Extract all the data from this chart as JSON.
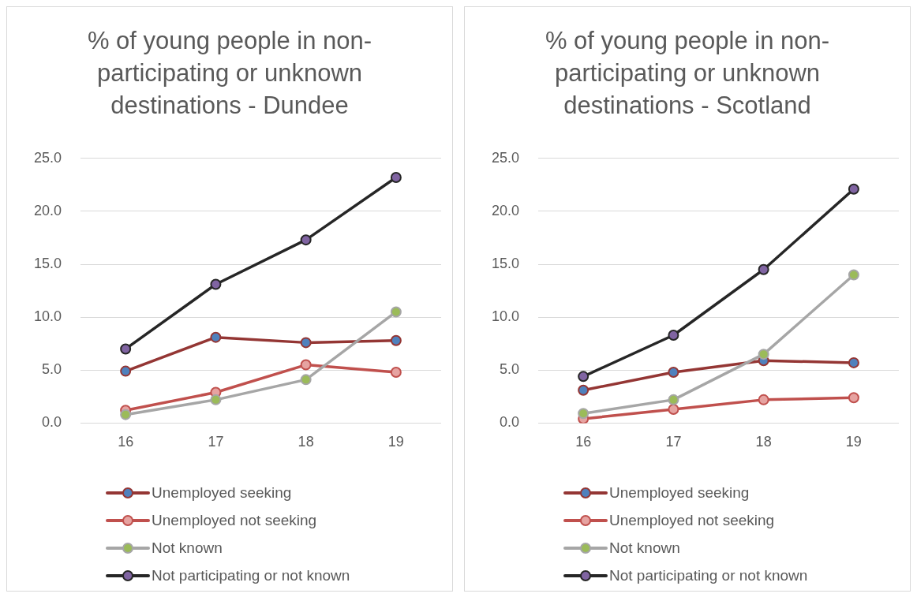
{
  "chart_data": [
    {
      "type": "line",
      "title": "% of young people in non-participating or unknown destinations - Dundee",
      "categories": [
        "16",
        "17",
        "18",
        "19"
      ],
      "ylim": [
        0,
        25
      ],
      "yticks": [
        {
          "value": 0,
          "label": "0.0"
        },
        {
          "value": 5,
          "label": "5.0"
        },
        {
          "value": 10,
          "label": "10.0"
        },
        {
          "value": 15,
          "label": "15.0"
        },
        {
          "value": 20,
          "label": "20.0"
        },
        {
          "value": 25,
          "label": "25.0"
        }
      ],
      "grid": "y",
      "legend": "bottom",
      "marker": "circle",
      "line_style": "solid",
      "series": [
        {
          "name": "Unemployed seeking",
          "color": "#943634",
          "colors": [
            "#4f81bd",
            "#4f81bd",
            "#4f81bd",
            "#4f81bd"
          ],
          "values": [
            4.9,
            8.1,
            7.6,
            7.8
          ]
        },
        {
          "name": "Unemployed not seeking",
          "color": "#c0504d",
          "colors": [
            "#e6a3a1",
            "#e6a3a1",
            "#e6a3a1",
            "#e6a3a1"
          ],
          "values": [
            1.2,
            2.9,
            5.5,
            4.8
          ]
        },
        {
          "name": "Not known",
          "color": "#a6a6a6",
          "colors": [
            "#9bbb59",
            "#9bbb59",
            "#9bbb59",
            "#9bbb59"
          ],
          "values": [
            0.8,
            2.2,
            4.1,
            10.5
          ]
        },
        {
          "name": "Not participating or not known",
          "color": "#262626",
          "colors": [
            "#8064a2",
            "#8064a2",
            "#8064a2",
            "#8064a2"
          ],
          "values": [
            7.0,
            13.1,
            17.3,
            23.2
          ]
        }
      ]
    },
    {
      "type": "line",
      "title": "% of young people in non-participating or unknown destinations - Scotland",
      "categories": [
        "16",
        "17",
        "18",
        "19"
      ],
      "ylim": [
        0,
        25
      ],
      "yticks": [
        {
          "value": 0,
          "label": "0.0"
        },
        {
          "value": 5,
          "label": "5.0"
        },
        {
          "value": 10,
          "label": "10.0"
        },
        {
          "value": 15,
          "label": "15.0"
        },
        {
          "value": 20,
          "label": "20.0"
        },
        {
          "value": 25,
          "label": "25.0"
        }
      ],
      "grid": "y",
      "legend": "bottom",
      "marker": "circle",
      "line_style": "solid",
      "series": [
        {
          "name": "Unemployed seeking",
          "color": "#943634",
          "colors": [
            "#4f81bd",
            "#4f81bd",
            "#4f81bd",
            "#4f81bd"
          ],
          "values": [
            3.1,
            4.8,
            5.9,
            5.7
          ]
        },
        {
          "name": "Unemployed not seeking",
          "color": "#c0504d",
          "colors": [
            "#e6a3a1",
            "#e6a3a1",
            "#e6a3a1",
            "#e6a3a1"
          ],
          "values": [
            0.4,
            1.3,
            2.2,
            2.4
          ]
        },
        {
          "name": "Not known",
          "color": "#a6a6a6",
          "colors": [
            "#9bbb59",
            "#9bbb59",
            "#9bbb59",
            "#9bbb59"
          ],
          "values": [
            0.9,
            2.2,
            6.5,
            14.0
          ]
        },
        {
          "name": "Not participating or not known",
          "color": "#262626",
          "colors": [
            "#8064a2",
            "#8064a2",
            "#8064a2",
            "#8064a2"
          ],
          "values": [
            4.4,
            8.3,
            14.5,
            22.1
          ]
        }
      ]
    }
  ]
}
